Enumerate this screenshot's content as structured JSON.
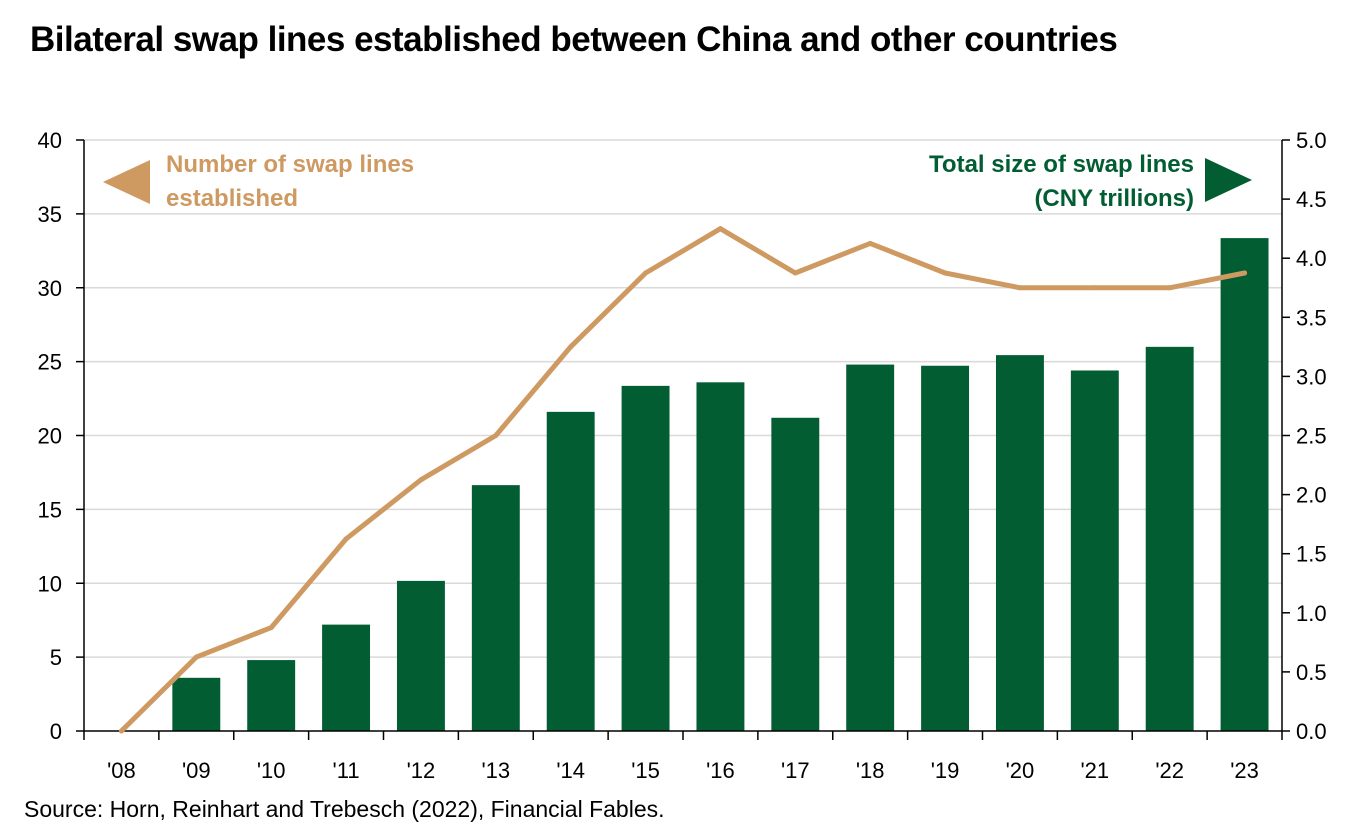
{
  "title": "Bilateral swap lines established between China and other countries",
  "source": "Source: Horn, Reinhart and Trebesch (2022), Financial Fables.",
  "colors": {
    "line": "#CE9A62",
    "bar": "#035D33",
    "grid": "#D9D9D9",
    "axis": "#000000"
  },
  "chart_data": {
    "type": "bar+line",
    "categories": [
      "'08",
      "'09",
      "'10",
      "'11",
      "'12",
      "'13",
      "'14",
      "'15",
      "'16",
      "'17",
      "'18",
      "'19",
      "'20",
      "'21",
      "'22",
      "'23"
    ],
    "series": [
      {
        "name": "Total size of swap lines (CNY trillions)",
        "type": "bar",
        "axis": "right",
        "values": [
          0,
          0.45,
          0.6,
          0.9,
          1.27,
          2.08,
          2.7,
          2.92,
          2.95,
          2.65,
          3.1,
          3.09,
          3.18,
          3.05,
          3.25,
          4.17
        ]
      },
      {
        "name": "Number of swap lines established",
        "type": "line",
        "axis": "left",
        "values": [
          0,
          5,
          7,
          13,
          17,
          20,
          26,
          31,
          34,
          31,
          33,
          31,
          30,
          30,
          30,
          31
        ]
      }
    ],
    "y_left": {
      "ylim": [
        0,
        40
      ],
      "ticks": [
        "0",
        "5",
        "10",
        "15",
        "20",
        "25",
        "30",
        "35",
        "40"
      ]
    },
    "y_right": {
      "ylim": [
        0,
        5
      ],
      "ticks": [
        "0.0",
        "0.5",
        "1.0",
        "1.5",
        "2.0",
        "2.5",
        "3.0",
        "3.5",
        "4.0",
        "4.5",
        "5.0"
      ]
    },
    "legend_left": {
      "line1": "Number of swap lines",
      "line2": "established"
    },
    "legend_right": {
      "line1": "Total size of swap lines",
      "line2": "(CNY trillions)"
    }
  }
}
